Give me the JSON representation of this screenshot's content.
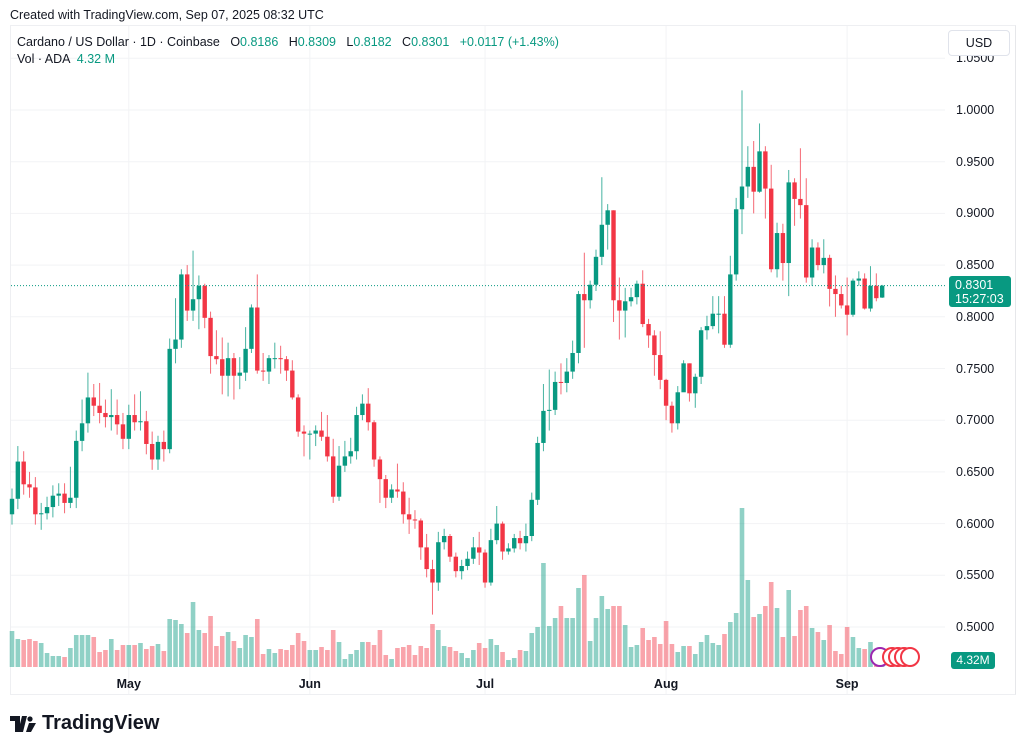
{
  "header": {
    "created": "Created with TradingView.com, Sep 07, 2025 08:32 UTC",
    "symbol": "Cardano / US Dollar · 1D · Coinbase",
    "o_label": "O",
    "o": "0.8186",
    "h_label": "H",
    "h": "0.8309",
    "l_label": "L",
    "l": "0.8182",
    "c_label": "C",
    "c": "0.8301",
    "change": "+0.0117 (+1.43%)",
    "vol_label": "Vol · ADA",
    "vol": "4.32 M"
  },
  "currency_button": "USD",
  "price_label": {
    "price": "0.8301",
    "countdown": "15:27:03"
  },
  "volume_label": "4.32M",
  "brand": "TradingView",
  "colors": {
    "up": "#089981",
    "down": "#f23645",
    "up_vol": "#089981",
    "down_vol": "#f23645"
  },
  "chart_data": {
    "type": "candlestick",
    "title": "Cardano / US Dollar · 1D · Coinbase",
    "ylim": [
      0.475,
      1.07
    ],
    "y_ticks": [
      "1.0500",
      "1.0000",
      "0.9500",
      "0.9000",
      "0.8500",
      "0.8000",
      "0.7500",
      "0.7000",
      "0.6500",
      "0.6000",
      "0.5500",
      "0.5000"
    ],
    "x_ticks": [
      {
        "label": "May",
        "index": 20
      },
      {
        "label": "Jun",
        "index": 51
      },
      {
        "label": "Jul",
        "index": 81
      },
      {
        "label": "Aug",
        "index": 112
      },
      {
        "label": "Sep",
        "index": 143
      }
    ],
    "last_price": 0.8301,
    "open": [
      0.609,
      0.624,
      0.66,
      0.638,
      0.635,
      0.609,
      0.61,
      0.616,
      0.627,
      0.629,
      0.62,
      0.625,
      0.68,
      0.697,
      0.722,
      0.714,
      0.707,
      0.703,
      0.705,
      0.696,
      0.682,
      0.705,
      0.698,
      0.699,
      0.677,
      0.662,
      0.679,
      0.672,
      0.769,
      0.778,
      0.841,
      0.806,
      0.817,
      0.83,
      0.799,
      0.762,
      0.759,
      0.743,
      0.76,
      0.743,
      0.746,
      0.769,
      0.809,
      0.748,
      0.747,
      0.76,
      0.76,
      0.759,
      0.748,
      0.722,
      0.689,
      0.687,
      0.687,
      0.69,
      0.684,
      0.665,
      0.626,
      0.656,
      0.665,
      0.67,
      0.705,
      0.716,
      0.698,
      0.662,
      0.643,
      0.625,
      0.633,
      0.631,
      0.609,
      0.604,
      0.603,
      0.577,
      0.556,
      0.543,
      0.582,
      0.588,
      0.568,
      0.554,
      0.559,
      0.566,
      0.577,
      0.572,
      0.543,
      0.584,
      0.6,
      0.573,
      0.576,
      0.586,
      0.581,
      0.588,
      0.623,
      0.678,
      0.709,
      0.71,
      0.737,
      0.736,
      0.747,
      0.765,
      0.822,
      0.816,
      0.831,
      0.858,
      0.889,
      0.903,
      0.816,
      0.806,
      0.815,
      0.819,
      0.832,
      0.793,
      0.782,
      0.763,
      0.739,
      0.714,
      0.697,
      0.727,
      0.755,
      0.726,
      0.742,
      0.787,
      0.791,
      0.803,
      0.803,
      0.773,
      0.841,
      0.904,
      0.926,
      0.945,
      0.921,
      0.96,
      0.924,
      0.846,
      0.881,
      0.852,
      0.93,
      0.914,
      0.908,
      0.838,
      0.867,
      0.85,
      0.857,
      0.827,
      0.822,
      0.811,
      0.802,
      0.835,
      0.837,
      0.808,
      0.83,
      0.8186
    ],
    "high": [
      0.634,
      0.675,
      0.67,
      0.65,
      0.645,
      0.62,
      0.626,
      0.637,
      0.639,
      0.639,
      0.655,
      0.69,
      0.72,
      0.746,
      0.735,
      0.736,
      0.72,
      0.73,
      0.72,
      0.707,
      0.715,
      0.725,
      0.728,
      0.709,
      0.689,
      0.685,
      0.69,
      0.779,
      0.818,
      0.846,
      0.85,
      0.864,
      0.84,
      0.832,
      0.805,
      0.787,
      0.78,
      0.775,
      0.765,
      0.761,
      0.79,
      0.812,
      0.841,
      0.765,
      0.763,
      0.775,
      0.772,
      0.762,
      0.758,
      0.725,
      0.695,
      0.69,
      0.695,
      0.708,
      0.705,
      0.682,
      0.675,
      0.68,
      0.683,
      0.713,
      0.725,
      0.731,
      0.7,
      0.665,
      0.647,
      0.638,
      0.658,
      0.64,
      0.625,
      0.613,
      0.605,
      0.59,
      0.565,
      0.592,
      0.595,
      0.59,
      0.572,
      0.565,
      0.573,
      0.587,
      0.592,
      0.575,
      0.595,
      0.617,
      0.602,
      0.581,
      0.59,
      0.593,
      0.6,
      0.63,
      0.684,
      0.735,
      0.749,
      0.747,
      0.755,
      0.76,
      0.777,
      0.825,
      0.862,
      0.835,
      0.865,
      0.935,
      0.909,
      0.903,
      0.838,
      0.828,
      0.828,
      0.835,
      0.845,
      0.798,
      0.787,
      0.786,
      0.74,
      0.718,
      0.733,
      0.758,
      0.755,
      0.745,
      0.79,
      0.801,
      0.82,
      0.82,
      0.82,
      0.859,
      0.915,
      1.019,
      0.965,
      0.97,
      0.987,
      0.965,
      0.947,
      0.891,
      0.89,
      0.942,
      0.934,
      0.963,
      0.934,
      0.875,
      0.872,
      0.875,
      0.86,
      0.84,
      0.83,
      0.838,
      0.837,
      0.844,
      0.842,
      0.849,
      0.842,
      0.8309
    ],
    "low": [
      0.599,
      0.614,
      0.628,
      0.625,
      0.599,
      0.594,
      0.604,
      0.606,
      0.617,
      0.61,
      0.615,
      0.615,
      0.67,
      0.688,
      0.704,
      0.697,
      0.693,
      0.69,
      0.686,
      0.672,
      0.672,
      0.69,
      0.69,
      0.667,
      0.652,
      0.652,
      0.66,
      0.668,
      0.755,
      0.77,
      0.796,
      0.796,
      0.788,
      0.789,
      0.745,
      0.754,
      0.725,
      0.723,
      0.72,
      0.73,
      0.738,
      0.765,
      0.745,
      0.738,
      0.735,
      0.75,
      0.745,
      0.738,
      0.72,
      0.684,
      0.665,
      0.662,
      0.675,
      0.68,
      0.66,
      0.62,
      0.622,
      0.65,
      0.658,
      0.662,
      0.7,
      0.69,
      0.655,
      0.62,
      0.615,
      0.62,
      0.625,
      0.6,
      0.59,
      0.595,
      0.565,
      0.548,
      0.512,
      0.535,
      0.575,
      0.563,
      0.548,
      0.546,
      0.555,
      0.561,
      0.56,
      0.538,
      0.54,
      0.58,
      0.565,
      0.57,
      0.572,
      0.575,
      0.573,
      0.583,
      0.618,
      0.67,
      0.69,
      0.705,
      0.725,
      0.727,
      0.74,
      0.755,
      0.77,
      0.808,
      0.825,
      0.85,
      0.865,
      0.795,
      0.778,
      0.78,
      0.81,
      0.812,
      0.79,
      0.77,
      0.743,
      0.73,
      0.7,
      0.688,
      0.691,
      0.728,
      0.718,
      0.712,
      0.735,
      0.778,
      0.788,
      0.784,
      0.77,
      0.77,
      0.835,
      0.88,
      0.915,
      0.9,
      0.92,
      0.895,
      0.843,
      0.838,
      0.835,
      0.82,
      0.888,
      0.895,
      0.833,
      0.83,
      0.845,
      0.842,
      0.81,
      0.8,
      0.808,
      0.782,
      0.8,
      0.83,
      0.807,
      0.805,
      0.815,
      0.8182
    ],
    "close": [
      0.624,
      0.66,
      0.638,
      0.635,
      0.609,
      0.61,
      0.616,
      0.627,
      0.629,
      0.62,
      0.625,
      0.68,
      0.697,
      0.722,
      0.714,
      0.707,
      0.703,
      0.705,
      0.696,
      0.682,
      0.705,
      0.698,
      0.699,
      0.677,
      0.662,
      0.679,
      0.672,
      0.769,
      0.778,
      0.841,
      0.806,
      0.817,
      0.83,
      0.799,
      0.762,
      0.759,
      0.743,
      0.76,
      0.743,
      0.746,
      0.769,
      0.809,
      0.748,
      0.747,
      0.76,
      0.76,
      0.759,
      0.748,
      0.722,
      0.689,
      0.687,
      0.687,
      0.69,
      0.684,
      0.665,
      0.626,
      0.656,
      0.665,
      0.67,
      0.705,
      0.716,
      0.698,
      0.662,
      0.643,
      0.625,
      0.633,
      0.631,
      0.609,
      0.604,
      0.603,
      0.577,
      0.556,
      0.543,
      0.582,
      0.588,
      0.568,
      0.554,
      0.559,
      0.566,
      0.577,
      0.572,
      0.543,
      0.584,
      0.6,
      0.573,
      0.576,
      0.586,
      0.581,
      0.588,
      0.623,
      0.678,
      0.709,
      0.71,
      0.737,
      0.736,
      0.747,
      0.765,
      0.822,
      0.816,
      0.831,
      0.858,
      0.889,
      0.903,
      0.816,
      0.806,
      0.815,
      0.819,
      0.832,
      0.793,
      0.782,
      0.763,
      0.739,
      0.714,
      0.697,
      0.727,
      0.755,
      0.726,
      0.742,
      0.787,
      0.791,
      0.803,
      0.803,
      0.773,
      0.841,
      0.904,
      0.926,
      0.945,
      0.921,
      0.96,
      0.924,
      0.846,
      0.881,
      0.852,
      0.93,
      0.914,
      0.908,
      0.838,
      0.867,
      0.85,
      0.857,
      0.827,
      0.822,
      0.811,
      0.802,
      0.835,
      0.837,
      0.808,
      0.83,
      0.818,
      0.8301
    ],
    "volume_millions": [
      21.6,
      16.8,
      16.2,
      16.8,
      15.6,
      14.4,
      8.4,
      6.6,
      6.6,
      6.0,
      11.4,
      19.2,
      19.2,
      19.2,
      18.0,
      9.0,
      10.2,
      16.8,
      10.2,
      13.2,
      13.2,
      13.2,
      14.4,
      10.8,
      12.6,
      13.8,
      9.6,
      28.8,
      28.2,
      25.8,
      20.4,
      39.0,
      22.2,
      20.4,
      30.6,
      12.6,
      18.6,
      21.0,
      15.6,
      11.4,
      19.2,
      18.0,
      28.8,
      7.8,
      10.8,
      8.4,
      10.8,
      10.2,
      13.2,
      20.4,
      15.6,
      10.2,
      10.2,
      12.0,
      10.2,
      22.2,
      15.0,
      4.8,
      7.8,
      10.2,
      15.0,
      15.0,
      13.2,
      22.2,
      7.2,
      4.8,
      11.4,
      12.0,
      13.2,
      7.2,
      12.6,
      11.4,
      25.8,
      22.2,
      12.6,
      12.0,
      9.6,
      8.4,
      5.4,
      10.2,
      14.4,
      11.4,
      16.8,
      13.2,
      9.0,
      4.2,
      5.4,
      10.2,
      9.6,
      20.4,
      24.0,
      62.4,
      24.6,
      29.4,
      36.6,
      29.4,
      29.4,
      47.4,
      55.2,
      15.6,
      29.4,
      42.6,
      34.8,
      36.6,
      36.6,
      25.2,
      12.0,
      13.2,
      23.4,
      16.2,
      18.0,
      13.8,
      27.6,
      13.8,
      9.0,
      12.6,
      12.6,
      7.8,
      15.0,
      19.2,
      14.4,
      13.2,
      19.8,
      27.0,
      32.4,
      95.4,
      52.2,
      30.0,
      31.8,
      36.6,
      51.0,
      35.4,
      18.0,
      46.2,
      18.6,
      34.2,
      36.6,
      23.4,
      21.0,
      16.2,
      25.2,
      9.6,
      7.8,
      24.0,
      18.0,
      11.4,
      10.8,
      15.0,
      6.0,
      4.32
    ]
  }
}
